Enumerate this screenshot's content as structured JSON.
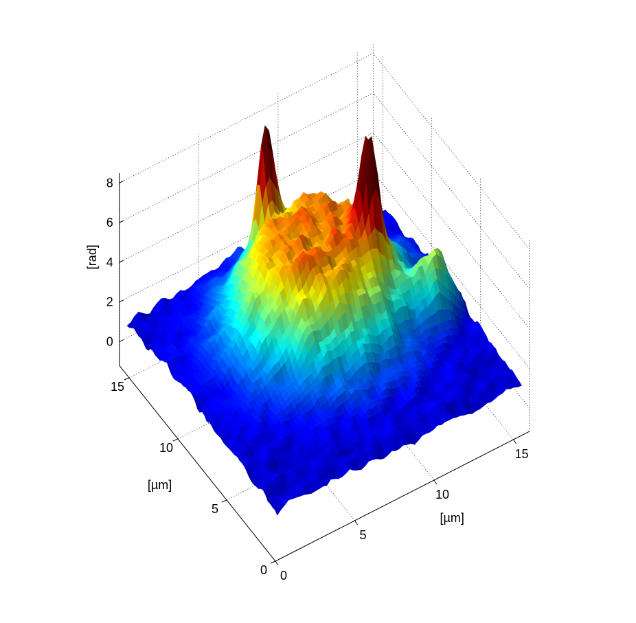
{
  "chart_data": {
    "type": "surface3d",
    "x_axis": {
      "label": "[µm]",
      "ticks": [
        0,
        5,
        10,
        15
      ],
      "range": [
        0,
        16
      ]
    },
    "y_axis": {
      "label": "[µm]",
      "ticks": [
        0,
        5,
        10,
        15
      ],
      "range": [
        0,
        16
      ]
    },
    "z_axis": {
      "label": "[rad]",
      "ticks": [
        0,
        2,
        4,
        6,
        8
      ],
      "range": [
        -1.2,
        8.5
      ]
    },
    "grid": true,
    "colormap": "jet",
    "color_range": [
      0.5,
      8
    ],
    "surface": {
      "baseline": 1.0,
      "features": [
        {
          "shape": "mound",
          "x": 8.5,
          "y": 9.5,
          "radius_x": 4.6,
          "radius_y": 4.2,
          "height": 5.2
        },
        {
          "shape": "peak",
          "x": 7.6,
          "y": 13.3,
          "radius_x": 0.7,
          "radius_y": 0.6,
          "height": 7.5
        },
        {
          "shape": "peak",
          "x": 11.0,
          "y": 8.3,
          "radius_x": 0.8,
          "radius_y": 0.8,
          "height": 6.0
        },
        {
          "shape": "shoulder",
          "x": 14.0,
          "y": 6.5,
          "radius_x": 1.3,
          "radius_y": 1.0,
          "height": 3.0
        }
      ]
    }
  }
}
